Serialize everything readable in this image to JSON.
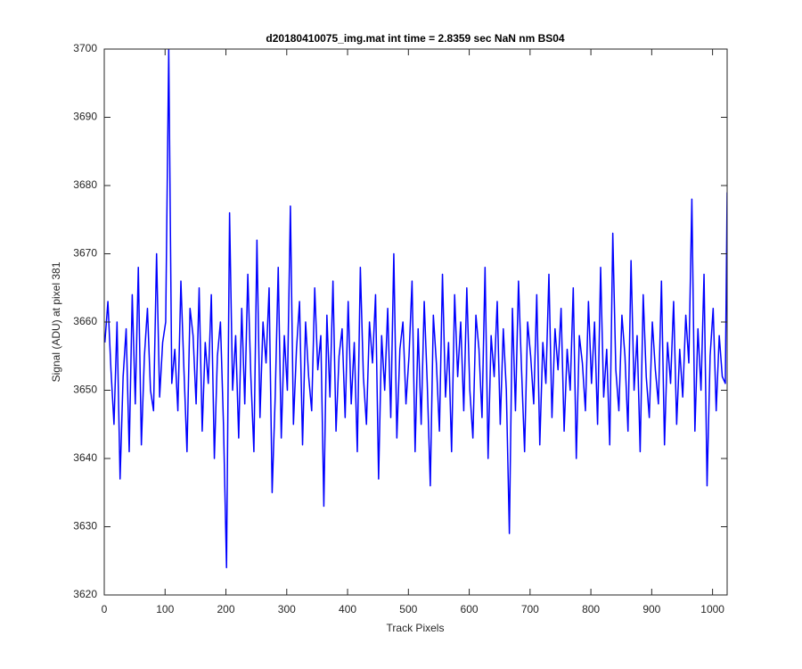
{
  "chart_data": {
    "type": "line",
    "title": "d20180410075_img.mat int time = 2.8359 sec  NaN nm BS04",
    "xlabel": "Track Pixels",
    "ylabel": "Signal (ADU) at pixel 381",
    "xlim": [
      0,
      1024
    ],
    "ylim": [
      3620,
      3700
    ],
    "xticks": [
      0,
      100,
      200,
      300,
      400,
      500,
      600,
      700,
      800,
      900,
      1000
    ],
    "yticks": [
      3620,
      3630,
      3640,
      3650,
      3660,
      3670,
      3680,
      3690,
      3700
    ],
    "grid": false,
    "series": [
      {
        "color": "#0000ff",
        "x": [
          1,
          6,
          11,
          16,
          21,
          26,
          31,
          36,
          41,
          46,
          51,
          56,
          61,
          66,
          71,
          76,
          81,
          86,
          91,
          96,
          101,
          106,
          111,
          116,
          121,
          126,
          131,
          136,
          141,
          146,
          151,
          156,
          161,
          166,
          171,
          176,
          181,
          186,
          191,
          196,
          201,
          206,
          211,
          216,
          221,
          226,
          231,
          236,
          241,
          246,
          251,
          256,
          261,
          266,
          271,
          276,
          281,
          286,
          291,
          296,
          301,
          306,
          311,
          316,
          321,
          326,
          331,
          336,
          341,
          346,
          351,
          356,
          361,
          366,
          371,
          376,
          381,
          386,
          391,
          396,
          401,
          406,
          411,
          416,
          421,
          426,
          431,
          436,
          441,
          446,
          451,
          456,
          461,
          466,
          471,
          476,
          481,
          486,
          491,
          496,
          501,
          506,
          511,
          516,
          521,
          526,
          531,
          536,
          541,
          546,
          551,
          556,
          561,
          566,
          571,
          576,
          581,
          586,
          591,
          596,
          601,
          606,
          611,
          616,
          621,
          626,
          631,
          636,
          641,
          646,
          651,
          656,
          661,
          666,
          671,
          676,
          681,
          686,
          691,
          696,
          701,
          706,
          711,
          716,
          721,
          726,
          731,
          736,
          741,
          746,
          751,
          756,
          761,
          766,
          771,
          776,
          781,
          786,
          791,
          796,
          801,
          806,
          811,
          816,
          821,
          826,
          831,
          836,
          841,
          846,
          851,
          856,
          861,
          866,
          871,
          876,
          881,
          886,
          891,
          896,
          901,
          906,
          911,
          916,
          921,
          926,
          931,
          936,
          941,
          946,
          951,
          956,
          961,
          966,
          971,
          976,
          981,
          986,
          991,
          996,
          1001,
          1006,
          1011,
          1016,
          1021,
          1024
        ],
        "values": [
          3657,
          3663,
          3653,
          3645,
          3660,
          3637,
          3652,
          3659,
          3641,
          3664,
          3648,
          3668,
          3642,
          3655,
          3662,
          3650,
          3647,
          3670,
          3649,
          3657,
          3660,
          3700,
          3651,
          3656,
          3647,
          3666,
          3653,
          3641,
          3662,
          3658,
          3648,
          3665,
          3644,
          3657,
          3651,
          3664,
          3640,
          3655,
          3660,
          3645,
          3624,
          3676,
          3650,
          3658,
          3643,
          3662,
          3648,
          3667,
          3652,
          3641,
          3672,
          3646,
          3660,
          3654,
          3665,
          3635,
          3649,
          3668,
          3643,
          3658,
          3650,
          3677,
          3645,
          3656,
          3663,
          3642,
          3660,
          3652,
          3647,
          3665,
          3653,
          3658,
          3633,
          3661,
          3649,
          3666,
          3644,
          3655,
          3659,
          3646,
          3663,
          3648,
          3657,
          3641,
          3668,
          3652,
          3645,
          3660,
          3654,
          3664,
          3637,
          3658,
          3650,
          3662,
          3646,
          3670,
          3643,
          3656,
          3660,
          3648,
          3655,
          3666,
          3641,
          3659,
          3645,
          3663,
          3651,
          3636,
          3661,
          3654,
          3644,
          3667,
          3649,
          3657,
          3641,
          3664,
          3652,
          3660,
          3647,
          3665,
          3650,
          3643,
          3661,
          3656,
          3646,
          3668,
          3640,
          3658,
          3652,
          3663,
          3645,
          3659,
          3650,
          3629,
          3662,
          3647,
          3666,
          3653,
          3641,
          3660,
          3655,
          3648,
          3664,
          3642,
          3657,
          3651,
          3667,
          3646,
          3659,
          3653,
          3662,
          3644,
          3656,
          3650,
          3665,
          3640,
          3658,
          3654,
          3647,
          3663,
          3651,
          3660,
          3645,
          3668,
          3649,
          3656,
          3642,
          3673,
          3653,
          3647,
          3661,
          3655,
          3644,
          3669,
          3650,
          3658,
          3641,
          3664,
          3652,
          3646,
          3660,
          3653,
          3648,
          3666,
          3642,
          3657,
          3651,
          3663,
          3645,
          3656,
          3649,
          3661,
          3654,
          3678,
          3644,
          3659,
          3650,
          3667,
          3636,
          3655,
          3662,
          3647,
          3658,
          3652,
          3651,
          3679
        ]
      }
    ]
  }
}
